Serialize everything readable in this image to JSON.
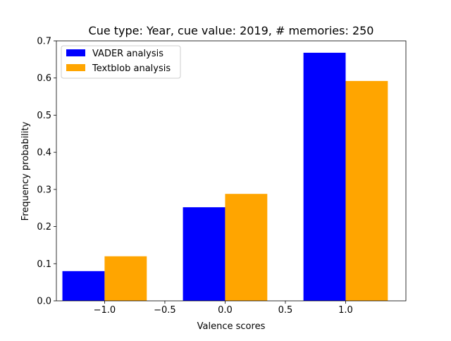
{
  "chart_data": {
    "type": "bar",
    "title": "Cue type: Year, cue value: 2019, # memories: 250",
    "xlabel": "Valence scores",
    "ylabel": "Frequency probability",
    "x": [
      -1.0,
      0.0,
      1.0
    ],
    "series": [
      {
        "name": "VADER analysis",
        "color": "#0000ff",
        "values": [
          0.08,
          0.252,
          0.668
        ]
      },
      {
        "name": "Textblob analysis",
        "color": "#ffa500",
        "values": [
          0.12,
          0.288,
          0.592
        ]
      }
    ],
    "xlim": [
      -1.4,
      1.5
    ],
    "ylim": [
      0,
      0.7
    ],
    "xticks": [
      -1.0,
      -0.5,
      0.0,
      0.5,
      1.0
    ],
    "xtick_labels": [
      "−1.0",
      "−0.5",
      "0.0",
      "0.5",
      "1.0"
    ],
    "yticks": [
      0.0,
      0.1,
      0.2,
      0.3,
      0.4,
      0.5,
      0.6,
      0.7
    ],
    "ytick_labels": [
      "0.0",
      "0.1",
      "0.2",
      "0.3",
      "0.4",
      "0.5",
      "0.6",
      "0.7"
    ],
    "bar_width": 0.35,
    "grid": false,
    "legend": "upper-left"
  }
}
